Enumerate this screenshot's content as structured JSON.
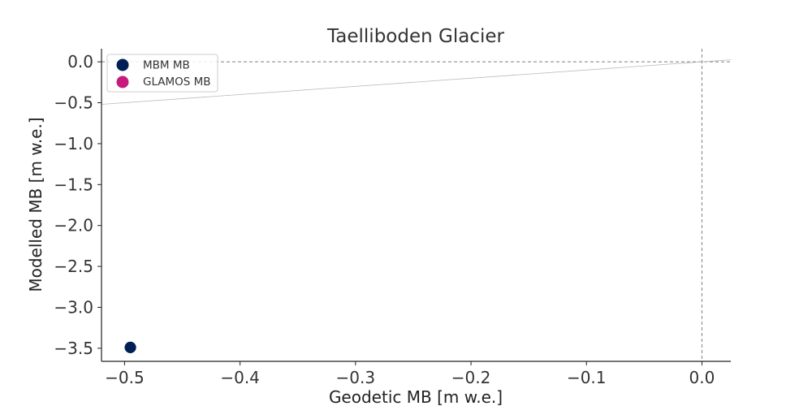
{
  "chart_data": {
    "type": "scatter",
    "title": "Taelliboden Glacier",
    "xlabel": "Geodetic MB [m w.e.]",
    "ylabel": "Modelled MB [m w.e.]",
    "xlim": [
      -0.52,
      0.025
    ],
    "ylim": [
      -3.66,
      0.16
    ],
    "x_ticks": [
      -0.5,
      -0.4,
      -0.3,
      -0.2,
      -0.1,
      0.0
    ],
    "x_tick_labels": [
      "−0.5",
      "−0.4",
      "−0.3",
      "−0.2",
      "−0.1",
      "0.0"
    ],
    "y_ticks": [
      0.0,
      -0.5,
      -1.0,
      -1.5,
      -2.0,
      -2.5,
      -3.0,
      -3.5
    ],
    "y_tick_labels": [
      "0.0",
      "−0.5",
      "−1.0",
      "−1.5",
      "−2.0",
      "−2.5",
      "−3.0",
      "−3.5"
    ],
    "reference_lines": {
      "zero_x": 0.0,
      "zero_y": 0.0,
      "identity_line": true
    },
    "legend": {
      "position": "top-left",
      "frame": true
    },
    "series": [
      {
        "name": "MBM MB",
        "color": "#001f54",
        "points": [
          {
            "x": -0.495,
            "y": -3.49
          }
        ]
      },
      {
        "name": "GLAMOS MB",
        "color": "#c71a7c",
        "points": []
      }
    ],
    "colors": {
      "axis": "#222222",
      "reference": "#808080",
      "identity": "#bbbbbb"
    }
  }
}
